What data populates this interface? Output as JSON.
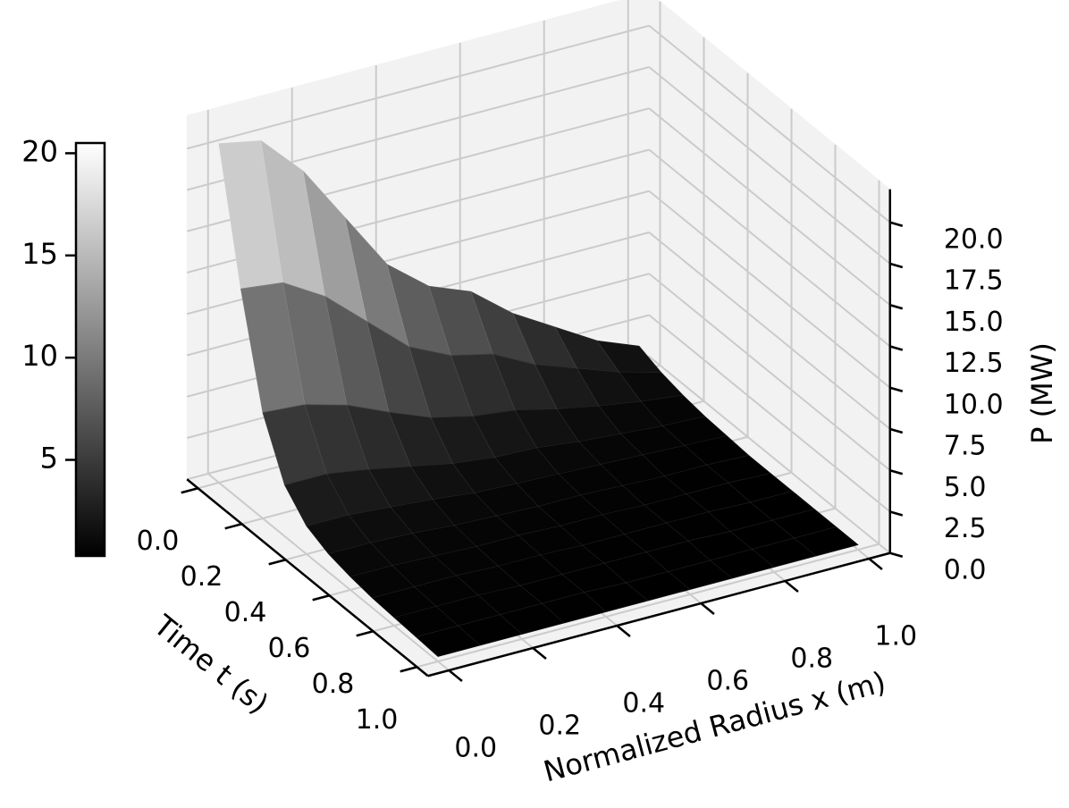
{
  "chart_data": {
    "type": "surface",
    "xlabel": "Normalized Radius x (m)",
    "ylabel": "Time t (s)",
    "zlabel": "P (MW)",
    "x": [
      0,
      0.1,
      0.2,
      0.3,
      0.4,
      0.5,
      0.6,
      0.7,
      0.8,
      0.9,
      1
    ],
    "y": [
      0,
      0.1,
      0.2,
      0.3,
      0.4,
      0.5,
      0.6,
      0.7,
      0.8,
      0.9,
      1
    ],
    "z": [
      [
        20.5,
        20,
        17.5,
        14,
        10.5,
        8.5,
        7.5,
        5.5,
        4,
        2.5,
        1.5
      ],
      [
        12.8,
        12.5,
        11.0,
        8.8,
        6.6,
        5.4,
        4.8,
        3.5,
        2.6,
        1.7,
        1.0
      ],
      [
        6.4,
        6.2,
        5.5,
        4.4,
        3.4,
        2.8,
        2.5,
        1.9,
        1.4,
        1.0,
        0.7
      ],
      [
        3.1,
        3.1,
        2.7,
        2.2,
        1.7,
        1.4,
        1.3,
        1.0,
        0.8,
        0.6,
        0.5
      ],
      [
        1.7,
        1.7,
        1.5,
        1.3,
        1.0,
        0.9,
        0.8,
        0.7,
        0.6,
        0.5,
        0.4
      ],
      [
        1.1,
        1.1,
        1.0,
        0.8,
        0.7,
        0.6,
        0.6,
        0.5,
        0.4,
        0.4,
        0.3
      ],
      [
        0.8,
        0.8,
        0.7,
        0.6,
        0.6,
        0.5,
        0.5,
        0.4,
        0.4,
        0.4,
        0.3
      ],
      [
        0.6,
        0.6,
        0.6,
        0.5,
        0.5,
        0.4,
        0.4,
        0.4,
        0.4,
        0.3,
        0.3
      ],
      [
        0.5,
        0.5,
        0.5,
        0.4,
        0.4,
        0.4,
        0.4,
        0.4,
        0.3,
        0.3,
        0.3
      ],
      [
        0.4,
        0.4,
        0.4,
        0.4,
        0.4,
        0.3,
        0.3,
        0.3,
        0.3,
        0.3,
        0.3
      ],
      [
        0.3,
        0.3,
        0.3,
        0.3,
        0.3,
        0.3,
        0.3,
        0.3,
        0.3,
        0.3,
        0.3
      ]
    ],
    "colormap": "gray",
    "xlim": [
      0,
      1
    ],
    "ylim": [
      0,
      1
    ],
    "zlim": [
      0,
      22
    ],
    "xticks": [
      {
        "value": 0,
        "label": "0.0"
      },
      0.2,
      0.4,
      0.6,
      0.8,
      {
        "value": 1,
        "label": "1.0"
      }
    ],
    "yticks": [
      {
        "value": 0,
        "label": "0.0"
      },
      0.2,
      0.4,
      0.6,
      0.8,
      {
        "value": 1,
        "label": "1.0"
      }
    ],
    "zticks": [
      {
        "value": 0,
        "label": "0.0"
      },
      2.5,
      {
        "value": 5,
        "label": "5.0"
      },
      7.5,
      {
        "value": 10,
        "label": "10.0"
      },
      12.5,
      {
        "value": 15,
        "label": "15.0"
      },
      17.5,
      {
        "value": 20,
        "label": "20.0"
      }
    ],
    "colorbar": {
      "clim": [
        0.3,
        20.5
      ],
      "ticks": [
        5,
        10,
        15,
        20
      ]
    },
    "grid": true
  }
}
